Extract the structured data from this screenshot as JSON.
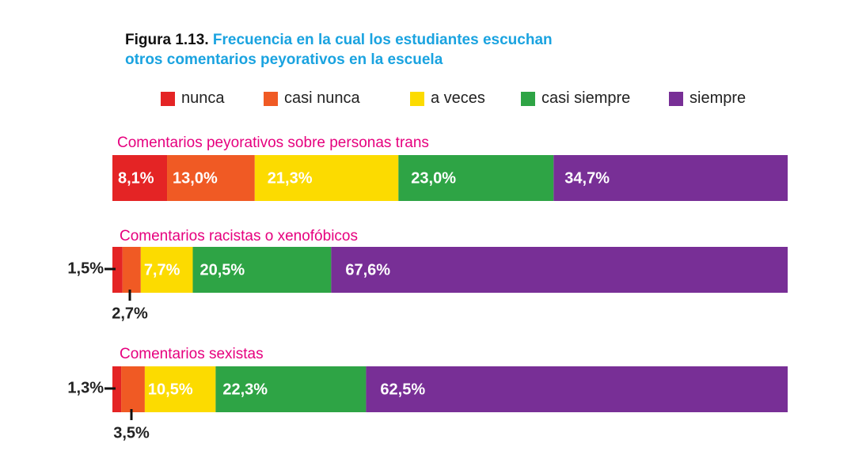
{
  "figure": {
    "number": "Figura 1.13.",
    "title": "Frecuencia en la cual los estudiantes escuchan otros comentarios peyorativos en la escuela",
    "title_line1": "Frecuencia en la cual los estudiantes escuchan",
    "title_line2": "otros comentarios peyorativos en la escuela"
  },
  "colors": {
    "figure_number": "#111111",
    "title": "#1aa3e0",
    "category_label": "#e6007e",
    "bar_text": "#ffffff",
    "callout": "#222222"
  },
  "legend": [
    {
      "label": "nunca",
      "color": "#e42425"
    },
    {
      "label": "casi nunca",
      "color": "#f05a24"
    },
    {
      "label": "a veces",
      "color": "#fcdb00"
    },
    {
      "label": "casi siempre",
      "color": "#2ea445"
    },
    {
      "label": "siempre",
      "color": "#782f96"
    }
  ],
  "chart_data": {
    "type": "bar",
    "orientation": "horizontal",
    "stacked": true,
    "percent_of_total": true,
    "legend_position": "top",
    "categories": [
      "Comentarios peyorativos sobre personas trans",
      "Comentarios racistas o xenofóbicos",
      "Comentarios sexistas"
    ],
    "series": [
      {
        "name": "nunca",
        "values": [
          8.1,
          1.5,
          1.3
        ],
        "labels": [
          "8,1%",
          "1,5%",
          "1,3%"
        ]
      },
      {
        "name": "casi nunca",
        "values": [
          13.0,
          2.7,
          3.5
        ],
        "labels": [
          "13,0%",
          "2,7%",
          "3,5%"
        ]
      },
      {
        "name": "a veces",
        "values": [
          21.3,
          7.7,
          10.5
        ],
        "labels": [
          "21,3%",
          "7,7%",
          "10,5%"
        ]
      },
      {
        "name": "casi siempre",
        "values": [
          23.0,
          20.5,
          22.3
        ],
        "labels": [
          "23,0%",
          "20,5%",
          "22,3%"
        ]
      },
      {
        "name": "siempre",
        "values": [
          34.7,
          67.6,
          62.5
        ],
        "labels": [
          "34,7%",
          "67,6%",
          "62,5%"
        ]
      }
    ]
  }
}
